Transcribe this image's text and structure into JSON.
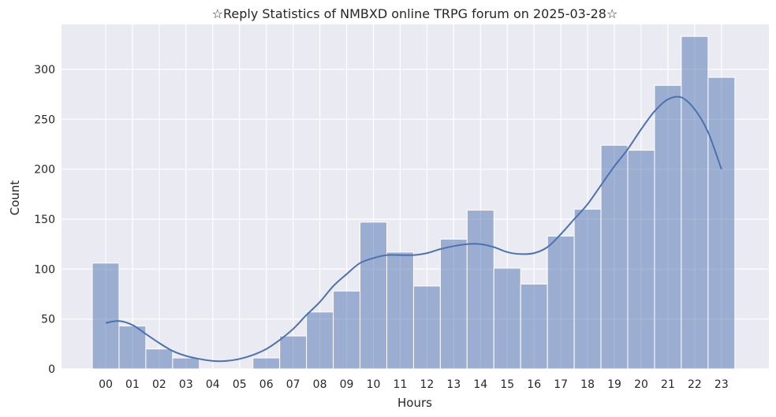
{
  "chart_data": {
    "type": "bar",
    "title": "☆Reply Statistics of NMBXD online TRPG forum on 2025-03-28☆",
    "xlabel": "Hours",
    "ylabel": "Count",
    "categories": [
      "00",
      "01",
      "02",
      "03",
      "04",
      "05",
      "06",
      "07",
      "08",
      "09",
      "10",
      "11",
      "12",
      "13",
      "14",
      "15",
      "16",
      "17",
      "18",
      "19",
      "20",
      "21",
      "22",
      "23"
    ],
    "values": [
      106,
      43,
      20,
      11,
      0,
      0,
      11,
      33,
      57,
      78,
      147,
      117,
      83,
      130,
      159,
      101,
      85,
      133,
      160,
      224,
      219,
      284,
      333,
      292
    ],
    "ylim": [
      0,
      345
    ],
    "yticks": [
      0,
      50,
      100,
      150,
      200,
      250,
      300
    ],
    "kde": {
      "x": [
        0,
        0.5,
        1,
        1.5,
        2,
        2.5,
        3,
        3.5,
        4,
        4.5,
        5,
        5.5,
        6,
        6.5,
        7,
        7.5,
        8,
        8.5,
        9,
        9.5,
        10,
        10.5,
        11,
        11.5,
        12,
        12.5,
        13,
        13.5,
        14,
        14.5,
        15,
        15.5,
        16,
        16.5,
        17,
        17.5,
        18,
        18.5,
        19,
        19.5,
        20,
        20.5,
        21,
        21.5,
        22,
        22.5,
        23
      ],
      "y": [
        46,
        48,
        44,
        35,
        26,
        18,
        13,
        10,
        8,
        8,
        10,
        14,
        20,
        29,
        40,
        54,
        67,
        83,
        95,
        106,
        111,
        114,
        114,
        114,
        116,
        120,
        123,
        125,
        125,
        122,
        117,
        115,
        116,
        122,
        135,
        150,
        165,
        184,
        203,
        220,
        240,
        258,
        270,
        272,
        260,
        237,
        200
      ]
    },
    "grid": true,
    "legend": "none",
    "colors": {
      "bar": "#4c72b0",
      "kde": "#4c72b0",
      "background": "#eaeaf2"
    }
  }
}
